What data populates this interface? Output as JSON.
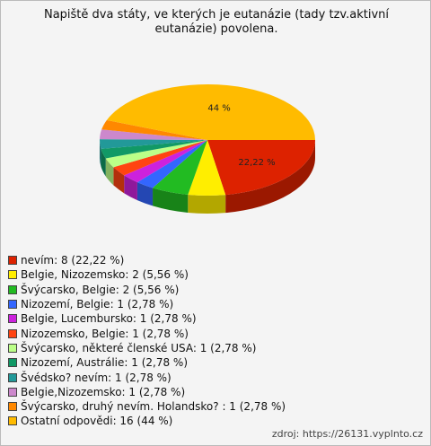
{
  "chart_data": {
    "type": "pie",
    "title": "Napiště dva státy, ve kterých je eutanázie (tady tzv.aktivní eutanázie) povolena.",
    "categories": [
      "nevím: 8 (22,22 %)",
      "Belgie, Nizozemsko: 2 (5,56 %)",
      "Švýcarsko, Belgie: 2 (5,56 %)",
      "Nizozemí, Belgie: 1 (2,78 %)",
      "Belgie, Lucembursko: 1 (2,78 %)",
      "Nizozemsko, Belgie: 1 (2,78 %)",
      "Švýcarsko, některé členské USA: 1 (2,78 %)",
      "Nizozemí, Austrálie: 1 (2,78 %)",
      "Švédsko? nevím: 1 (2,78 %)",
      "Belgie,Nizozemsko: 1 (2,78 %)",
      "Švýcarsko, druhý nevím. Holandsko? : 1 (2,78 %)",
      "Ostatní odpovědi: 16 (44 %)"
    ],
    "values": [
      22.22,
      5.56,
      5.56,
      2.78,
      2.78,
      2.78,
      2.78,
      2.78,
      2.78,
      2.78,
      2.78,
      44
    ],
    "value_labels": [
      "22,22 %",
      null,
      null,
      null,
      null,
      null,
      null,
      null,
      null,
      null,
      null,
      "44 %"
    ],
    "colors": [
      "#dd2200",
      "#ffee00",
      "#22bb22",
      "#3366ff",
      "#cc22dd",
      "#ff4411",
      "#bbff88",
      "#119966",
      "#229999",
      "#cc88cc",
      "#ff8800",
      "#ffbb00"
    ],
    "source": "zdroj: https://26131.vyplnto.cz"
  }
}
